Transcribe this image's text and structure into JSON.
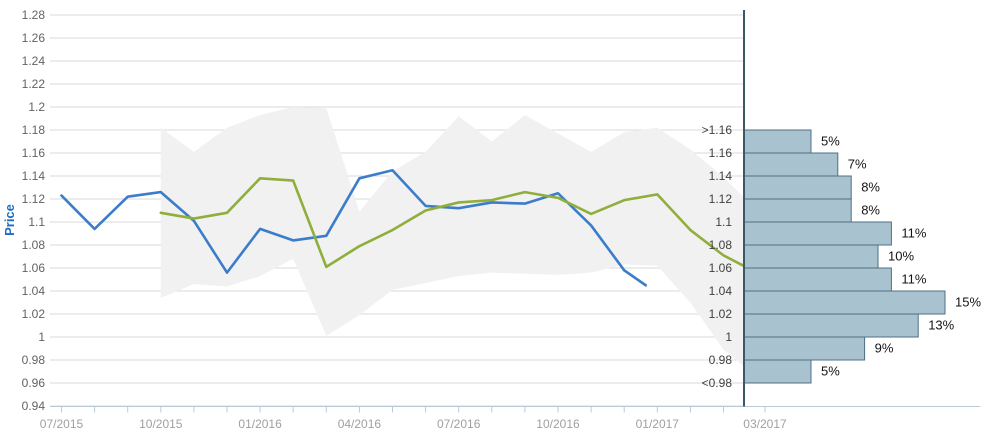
{
  "chart_data": {
    "type": "line",
    "title": "",
    "ylabel": "Price",
    "main_chart": {
      "y_axis": {
        "min": 0.94,
        "max": 1.28,
        "step": 0.02,
        "tick_labels": [
          "1.28",
          "1.26",
          "1.24",
          "1.22",
          "1.2",
          "1.18",
          "1.16",
          "1.14",
          "1.12",
          "1.1",
          "1.08",
          "1.06",
          "1.04",
          "1.02",
          "1",
          "0.98",
          "0.96",
          "0.94"
        ]
      },
      "x_axis": {
        "tick_labels": [
          "07/2015",
          "10/2015",
          "01/2016",
          "04/2016",
          "07/2016",
          "10/2016",
          "01/2017"
        ],
        "tick_months": [
          0,
          3,
          6,
          9,
          12,
          15,
          18
        ],
        "minor_tick_every_month": true,
        "months_visible": 20.6
      },
      "grid": true,
      "series": [
        {
          "name": "price-history",
          "color": "#3b7dc8",
          "points": [
            [
              0,
              1.123
            ],
            [
              1,
              1.094
            ],
            [
              2,
              1.122
            ],
            [
              3,
              1.126
            ],
            [
              4,
              1.101
            ],
            [
              5,
              1.056
            ],
            [
              6,
              1.094
            ],
            [
              7,
              1.084
            ],
            [
              8,
              1.088
            ],
            [
              9,
              1.138
            ],
            [
              10,
              1.145
            ],
            [
              11,
              1.114
            ],
            [
              12,
              1.112
            ],
            [
              13,
              1.117
            ],
            [
              14,
              1.116
            ],
            [
              15,
              1.125
            ],
            [
              16,
              1.097
            ],
            [
              17,
              1.058
            ],
            [
              17.65,
              1.045
            ]
          ]
        },
        {
          "name": "forecast",
          "color": "#90ae3b",
          "points": [
            [
              3,
              1.108
            ],
            [
              4,
              1.103
            ],
            [
              5,
              1.108
            ],
            [
              6,
              1.138
            ],
            [
              7,
              1.136
            ],
            [
              8,
              1.061
            ],
            [
              9,
              1.079
            ],
            [
              10,
              1.093
            ],
            [
              11,
              1.11
            ],
            [
              12,
              1.117
            ],
            [
              13,
              1.119
            ],
            [
              14,
              1.126
            ],
            [
              15,
              1.121
            ],
            [
              16,
              1.107
            ],
            [
              17,
              1.119
            ],
            [
              18,
              1.124
            ],
            [
              19,
              1.093
            ],
            [
              20,
              1.071
            ],
            [
              20.6,
              1.062
            ]
          ]
        }
      ],
      "band": {
        "name": "confidence-band",
        "color": "#f1f1f2",
        "upper": [
          [
            3,
            1.182
          ],
          [
            4,
            1.161
          ],
          [
            5,
            1.182
          ],
          [
            6,
            1.193
          ],
          [
            7,
            1.2
          ],
          [
            8,
            1.199
          ],
          [
            9,
            1.109
          ],
          [
            10,
            1.144
          ],
          [
            11,
            1.161
          ],
          [
            12,
            1.192
          ],
          [
            13,
            1.17
          ],
          [
            14,
            1.193
          ],
          [
            15,
            1.177
          ],
          [
            16,
            1.161
          ],
          [
            17,
            1.178
          ],
          [
            18,
            1.182
          ],
          [
            19,
            1.163
          ],
          [
            20,
            1.139
          ],
          [
            20.6,
            1.122
          ]
        ],
        "lower": [
          [
            3,
            1.034
          ],
          [
            4,
            1.046
          ],
          [
            5,
            1.044
          ],
          [
            6,
            1.053
          ],
          [
            7,
            1.068
          ],
          [
            8,
            1.001
          ],
          [
            9,
            1.019
          ],
          [
            10,
            1.041
          ],
          [
            11,
            1.047
          ],
          [
            12,
            1.053
          ],
          [
            13,
            1.056
          ],
          [
            14,
            1.055
          ],
          [
            15,
            1.054
          ],
          [
            16,
            1.056
          ],
          [
            17,
            1.063
          ],
          [
            18,
            1.062
          ],
          [
            19,
            1.03
          ],
          [
            20,
            0.989
          ],
          [
            20.6,
            0.975
          ]
        ]
      }
    },
    "histogram": {
      "x_label": "03/2017",
      "bin_edge_labels": [
        ">1.16",
        "1.16",
        "1.14",
        "1.12",
        "1.1",
        "1.08",
        "1.06",
        "1.04",
        "1.02",
        "1",
        "0.98",
        "<0.98"
      ],
      "bin_edge_values": [
        1.18,
        1.16,
        1.14,
        1.12,
        1.1,
        1.08,
        1.06,
        1.04,
        1.02,
        1.0,
        0.98,
        0.96
      ],
      "bars_pct": [
        5,
        7,
        8,
        8,
        11,
        10,
        11,
        15,
        13,
        9,
        5
      ],
      "bar_labels": [
        "5%",
        "7%",
        "8%",
        "8%",
        "11%",
        "10%",
        "11%",
        "15%",
        "13%",
        "9%",
        "5%"
      ]
    },
    "colors": {
      "price_line": "#3b7dc8",
      "forecast_line": "#90ae3b",
      "band_fill": "#f1f1f2",
      "gridline": "#d9d9d9",
      "axis_line": "#b7ccd6",
      "y_tick_label": "#636363",
      "x_tick_label": "#a0a0a0",
      "bin_label": "#404040",
      "pct_label": "#141414",
      "bar_fill": "#a9c2d0",
      "bar_stroke": "#4e7082",
      "hist_axis": "#3a5866",
      "ylabel_color": "#1b6ec2"
    }
  }
}
